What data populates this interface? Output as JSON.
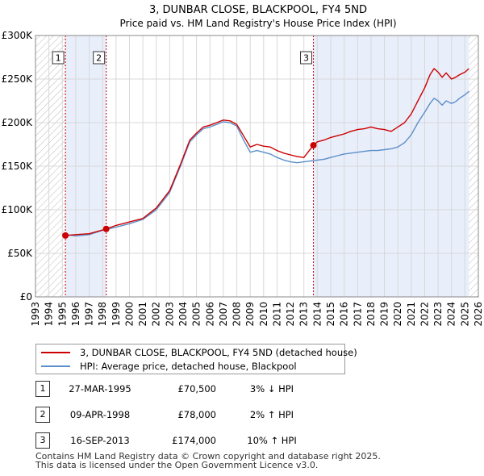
{
  "chart_data": {
    "type": "line",
    "title": "3, DUNBAR CLOSE, BLACKPOOL, FY4 5ND",
    "subtitle": "Price paid vs. HM Land Registry's House Price Index (HPI)",
    "xlim": [
      1993,
      2026
    ],
    "ylim": [
      0,
      300000
    ],
    "y_ticks": [
      0,
      50000,
      100000,
      150000,
      200000,
      250000,
      300000
    ],
    "y_tick_labels": [
      "£0",
      "£50K",
      "£100K",
      "£150K",
      "£200K",
      "£250K",
      "£300K"
    ],
    "x_ticks": [
      1993,
      1994,
      1995,
      1996,
      1997,
      1998,
      1999,
      2000,
      2001,
      2002,
      2003,
      2004,
      2005,
      2006,
      2007,
      2008,
      2009,
      2010,
      2011,
      2012,
      2013,
      2014,
      2015,
      2016,
      2017,
      2018,
      2019,
      2020,
      2021,
      2022,
      2023,
      2024,
      2025,
      2026
    ],
    "x_tick_labels": [
      "1993",
      "1994",
      "1995",
      "1996",
      "1997",
      "1998",
      "1999",
      "2000",
      "2001",
      "2002",
      "2003",
      "2004",
      "2005",
      "2006",
      "2007",
      "2008",
      "2009",
      "2010",
      "2011",
      "2012",
      "2013",
      "2014",
      "2015",
      "2016",
      "2017",
      "2018",
      "2019",
      "2020",
      "2021",
      "2022",
      "2023",
      "2024",
      "2025",
      "2026"
    ],
    "hatched_ranges": [
      [
        1993,
        1995.23
      ],
      [
        2025.3,
        2026
      ]
    ],
    "shaded_ranges": [
      [
        1995.23,
        1998.27
      ],
      [
        2013.71,
        2025.3
      ]
    ],
    "series": [
      {
        "name": "3, DUNBAR CLOSE, BLACKPOOL, FY4 5ND (detached house)",
        "color": "#cc0000",
        "x": [
          1995.23,
          1996.0,
          1997.0,
          1998.27,
          1999.0,
          2000.0,
          2001.0,
          2002.0,
          2003.0,
          2003.8,
          2004.5,
          2005.0,
          2005.5,
          2006.0,
          2006.5,
          2007.0,
          2007.5,
          2008.0,
          2008.5,
          2009.0,
          2009.5,
          2010.0,
          2010.5,
          2011.0,
          2011.5,
          2012.0,
          2012.5,
          2013.0,
          2013.71,
          2014.0,
          2014.5,
          2015.0,
          2015.5,
          2016.0,
          2016.5,
          2017.0,
          2017.5,
          2018.0,
          2018.5,
          2019.0,
          2019.5,
          2020.0,
          2020.5,
          2021.0,
          2021.5,
          2022.0,
          2022.4,
          2022.7,
          2023.0,
          2023.3,
          2023.6,
          2024.0,
          2024.3,
          2024.6,
          2025.0,
          2025.3
        ],
        "values": [
          70500,
          71500,
          72500,
          78000,
          82000,
          86000,
          90000,
          102000,
          122000,
          152000,
          180000,
          188000,
          195000,
          197000,
          200000,
          203000,
          202000,
          198000,
          185000,
          172000,
          175000,
          173000,
          172000,
          168000,
          165000,
          163000,
          161000,
          160000,
          174000,
          178000,
          180000,
          183000,
          185000,
          187000,
          190000,
          192000,
          193000,
          195000,
          193000,
          192000,
          190000,
          195000,
          200000,
          210000,
          225000,
          240000,
          255000,
          262000,
          258000,
          252000,
          257000,
          250000,
          252000,
          255000,
          258000,
          262000
        ]
      },
      {
        "name": "HPI: Average price, detached house, Blackpool",
        "color": "#5b8fc9",
        "x": [
          1995.0,
          1996.0,
          1997.0,
          1998.0,
          1999.0,
          2000.0,
          2001.0,
          2002.0,
          2003.0,
          2003.8,
          2004.5,
          2005.0,
          2005.5,
          2006.0,
          2006.5,
          2007.0,
          2007.5,
          2008.0,
          2008.5,
          2009.0,
          2009.5,
          2010.0,
          2010.5,
          2011.0,
          2011.5,
          2012.0,
          2012.5,
          2013.0,
          2013.5,
          2014.0,
          2014.5,
          2015.0,
          2015.5,
          2016.0,
          2016.5,
          2017.0,
          2017.5,
          2018.0,
          2018.5,
          2019.0,
          2019.5,
          2020.0,
          2020.5,
          2021.0,
          2021.5,
          2022.0,
          2022.4,
          2022.7,
          2023.0,
          2023.3,
          2023.6,
          2024.0,
          2024.3,
          2024.6,
          2025.0,
          2025.3
        ],
        "values": [
          72000,
          70000,
          71500,
          76500,
          80000,
          84000,
          89000,
          100000,
          120000,
          150000,
          178000,
          186000,
          193000,
          195000,
          198000,
          201000,
          200000,
          196000,
          180000,
          166000,
          168000,
          166000,
          164000,
          160000,
          157000,
          155000,
          154000,
          155000,
          156000,
          157000,
          158000,
          160000,
          162000,
          164000,
          165000,
          166000,
          167000,
          168000,
          168000,
          169000,
          170000,
          172000,
          177000,
          186000,
          200000,
          212000,
          222000,
          228000,
          225000,
          220000,
          225000,
          222000,
          224000,
          228000,
          232000,
          236000
        ]
      }
    ],
    "transactions": [
      {
        "label": "1",
        "x": 1995.23,
        "value": 70500
      },
      {
        "label": "2",
        "x": 1998.27,
        "value": 78000
      },
      {
        "label": "3",
        "x": 2013.71,
        "value": 174000
      }
    ],
    "legend_position": "below-chart"
  },
  "legend": {
    "items": [
      {
        "label": "3, DUNBAR CLOSE, BLACKPOOL, FY4 5ND (detached house)",
        "color": "#cc0000"
      },
      {
        "label": "HPI: Average price, detached house, Blackpool",
        "color": "#5b8fc9"
      }
    ]
  },
  "transactions_table": [
    {
      "num": "1",
      "date": "27-MAR-1995",
      "price": "£70,500",
      "hpi": "3% ↓ HPI"
    },
    {
      "num": "2",
      "date": "09-APR-1998",
      "price": "£78,000",
      "hpi": "2% ↑ HPI"
    },
    {
      "num": "3",
      "date": "16-SEP-2013",
      "price": "£174,000",
      "hpi": "10% ↑ HPI"
    }
  ],
  "footer": {
    "line1": "Contains HM Land Registry data © Crown copyright and database right 2025.",
    "line2": "This data is licensed under the Open Government Licence v3.0."
  }
}
